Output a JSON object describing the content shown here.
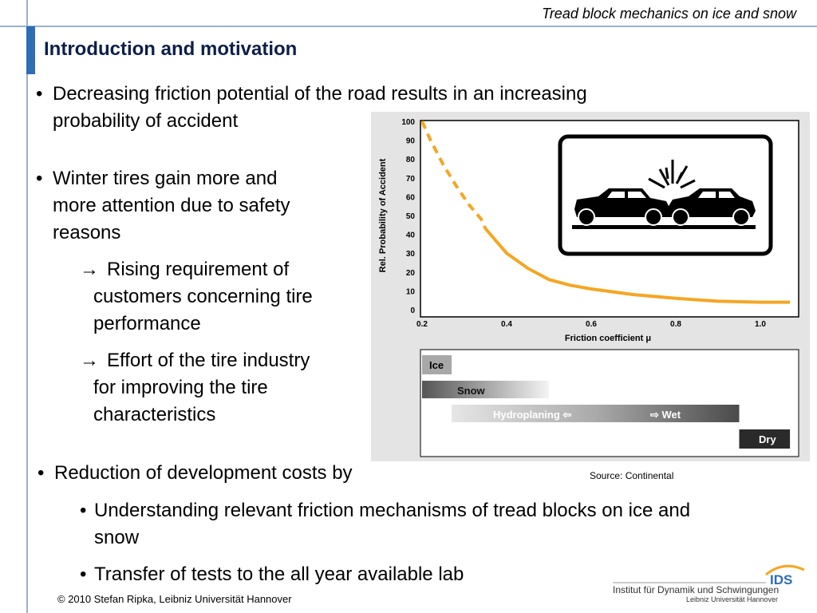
{
  "header": {
    "title": "Tread block mechanics on ice and snow"
  },
  "page": {
    "title": "Introduction and motivation"
  },
  "content": {
    "bullet1": {
      "line1": "Decreasing friction potential of the road results in an increasing",
      "line2": "probability of accident"
    },
    "bullet2": {
      "line1": "Winter tires gain more and",
      "line2": "more attention due to safety",
      "line3": "reasons"
    },
    "arrow1": {
      "line1": "Rising requirement of",
      "line2": "customers concerning tire",
      "line3": "performance"
    },
    "arrow2": {
      "line1": "Effort of the tire industry",
      "line2": "for improving the tire",
      "line3": "characteristics"
    },
    "bullet3": {
      "text": "Reduction of development costs by"
    },
    "sub1": {
      "line1": "Understanding relevant friction mechanisms of tread blocks on ice and",
      "line2": "snow"
    },
    "sub2": {
      "text": "Transfer of tests to the all year available lab"
    }
  },
  "chart_data": {
    "type": "line",
    "xlabel": "Friction coefficient μ",
    "ylabel": "Rel. Probability of Accident",
    "xlim": [
      0.2,
      1.1
    ],
    "ylim": [
      0,
      100
    ],
    "x_ticks": [
      "0.2",
      "0.4",
      "0.6",
      "0.8",
      "1.0"
    ],
    "y_ticks": [
      "0",
      "10",
      "20",
      "30",
      "40",
      "50",
      "60",
      "70",
      "80",
      "90",
      "100"
    ],
    "series": [
      {
        "name": "dashed",
        "x": [
          0.2,
          0.22,
          0.25,
          0.28,
          0.31,
          0.34,
          0.35
        ],
        "y": [
          100,
          90,
          77,
          66,
          56,
          48,
          43
        ]
      },
      {
        "name": "solid",
        "x": [
          0.35,
          0.4,
          0.45,
          0.5,
          0.55,
          0.6,
          0.7,
          0.8,
          0.9,
          1.0,
          1.07
        ],
        "y": [
          43,
          30,
          22,
          16,
          13,
          11,
          8,
          6,
          4.5,
          4,
          4
        ]
      }
    ],
    "conditions": [
      {
        "label": "Ice",
        "start": 0.2,
        "end": 0.27
      },
      {
        "label": "Snow",
        "start": 0.2,
        "end": 0.5
      },
      {
        "label": "Hydroplaning ⇦",
        "label2": "⇨ Wet",
        "start": 0.27,
        "end": 0.95
      },
      {
        "label": "Dry",
        "start": 0.95,
        "end": 1.07
      }
    ]
  },
  "source": "Source: Continental",
  "footer": {
    "copyright": "© 2010 Stefan Ripka, Leibniz Universität Hannover"
  },
  "logo": {
    "abbr": "IDS",
    "line1": "Institut für Dynamik und Schwingungen",
    "line2": "Leibniz Universität Hannover"
  },
  "colors": {
    "curve": "#f5a623",
    "accent": "#2f6db5",
    "title": "#0d1f4a"
  }
}
